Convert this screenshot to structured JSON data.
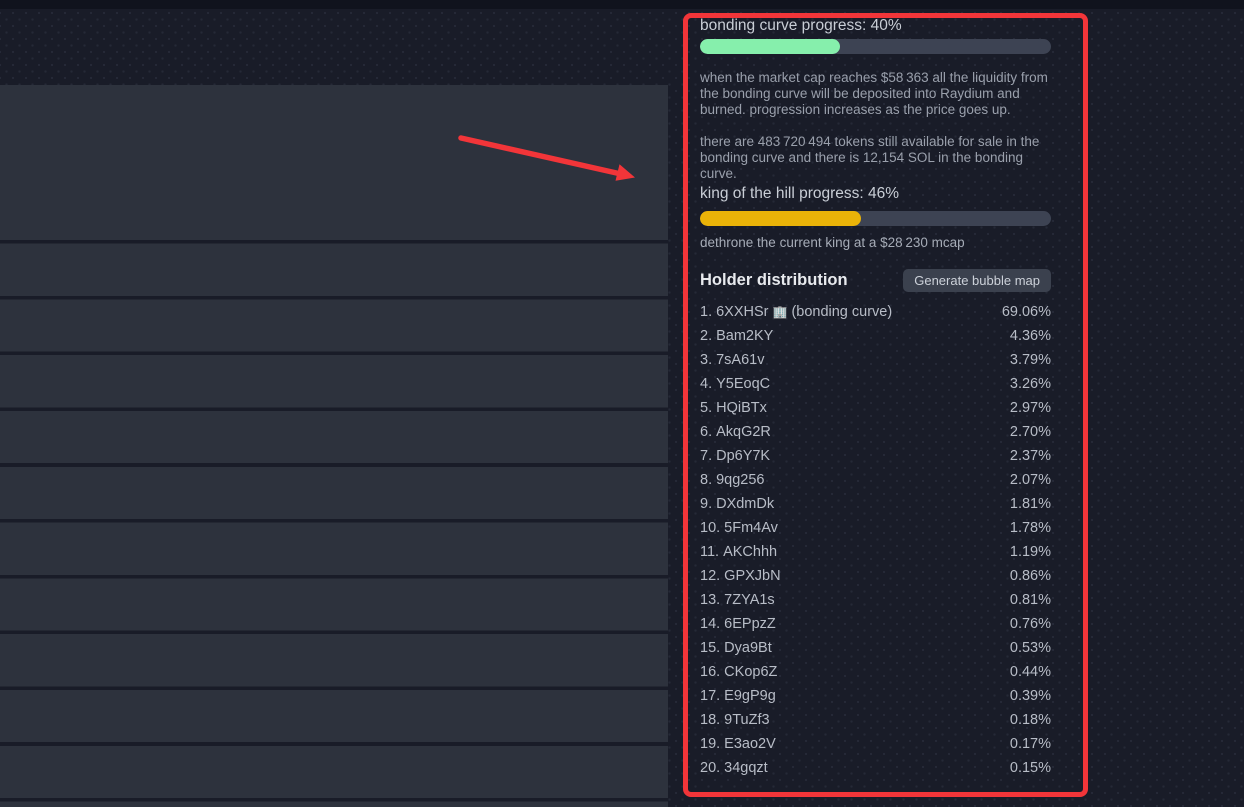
{
  "colors": {
    "annotation_red": "#f23539",
    "bonding_green": "#86efac",
    "koth_yellow": "#eab308",
    "track_gray": "#3d4353",
    "page_bg": "#191c28",
    "row_bg": "#2d323d"
  },
  "bonding": {
    "title": "bonding curve progress: 40%",
    "percent": 40,
    "description": "when the market cap reaches $58 363 all the liquidity from the bonding curve will be deposited into Raydium and burned. progression increases as the price goes up.",
    "availability": "there are 483 720 494 tokens still available for sale in the bonding curve and there is 12,154 SOL in the bonding curve."
  },
  "king_of_the_hill": {
    "title": "king of the hill progress: 46%",
    "percent": 46,
    "dethrone_text": "dethrone the current king at a $28 230 mcap"
  },
  "holder_distribution": {
    "title": "Holder distribution",
    "button_label": "Generate bubble map",
    "holders": [
      {
        "rank": "1.",
        "address": "6XXHSr",
        "icon": "🏢",
        "note": "(bonding curve)",
        "percent": "69.06%"
      },
      {
        "rank": "2.",
        "address": "Bam2KY",
        "icon": "",
        "note": "",
        "percent": "4.36%"
      },
      {
        "rank": "3.",
        "address": "7sA61v",
        "icon": "",
        "note": "",
        "percent": "3.79%"
      },
      {
        "rank": "4.",
        "address": "Y5EoqC",
        "icon": "",
        "note": "",
        "percent": "3.26%"
      },
      {
        "rank": "5.",
        "address": "HQiBTx",
        "icon": "",
        "note": "",
        "percent": "2.97%"
      },
      {
        "rank": "6.",
        "address": "AkqG2R",
        "icon": "",
        "note": "",
        "percent": "2.70%"
      },
      {
        "rank": "7.",
        "address": "Dp6Y7K",
        "icon": "",
        "note": "",
        "percent": "2.37%"
      },
      {
        "rank": "8.",
        "address": "9qg256",
        "icon": "",
        "note": "",
        "percent": "2.07%"
      },
      {
        "rank": "9.",
        "address": "DXdmDk",
        "icon": "",
        "note": "",
        "percent": "1.81%"
      },
      {
        "rank": "10.",
        "address": "5Fm4Av",
        "icon": "",
        "note": "",
        "percent": "1.78%"
      },
      {
        "rank": "11.",
        "address": "AKChhh",
        "icon": "",
        "note": "",
        "percent": "1.19%"
      },
      {
        "rank": "12.",
        "address": "GPXJbN",
        "icon": "",
        "note": "",
        "percent": "0.86%"
      },
      {
        "rank": "13.",
        "address": "7ZYA1s",
        "icon": "",
        "note": "",
        "percent": "0.81%"
      },
      {
        "rank": "14.",
        "address": "6EPpzZ",
        "icon": "",
        "note": "",
        "percent": "0.76%"
      },
      {
        "rank": "15.",
        "address": "Dya9Bt",
        "icon": "",
        "note": "",
        "percent": "0.53%"
      },
      {
        "rank": "16.",
        "address": "CKop6Z",
        "icon": "",
        "note": "",
        "percent": "0.44%"
      },
      {
        "rank": "17.",
        "address": "E9gP9g",
        "icon": "",
        "note": "",
        "percent": "0.39%"
      },
      {
        "rank": "18.",
        "address": "9TuZf3",
        "icon": "",
        "note": "",
        "percent": "0.18%"
      },
      {
        "rank": "19.",
        "address": "E3ao2V",
        "icon": "",
        "note": "",
        "percent": "0.17%"
      },
      {
        "rank": "20.",
        "address": "34gqzt",
        "icon": "",
        "note": "",
        "percent": "0.15%"
      }
    ]
  }
}
